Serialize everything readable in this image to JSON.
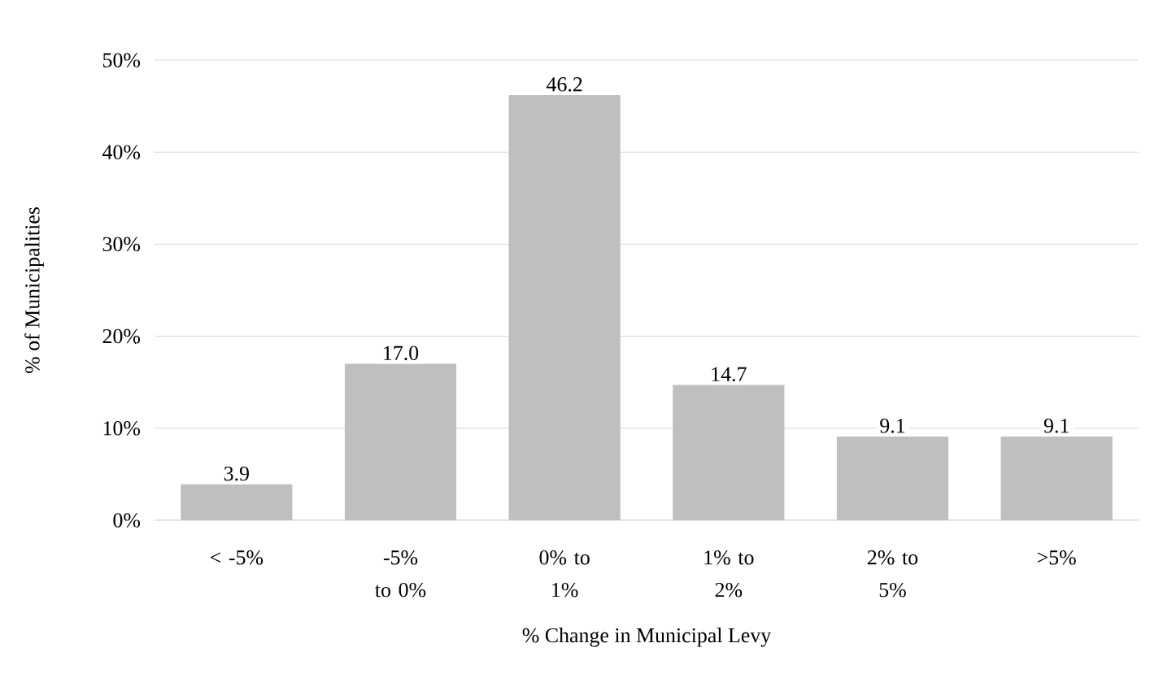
{
  "chart_data": {
    "type": "bar",
    "xlabel": "% Change in Municipal Levy",
    "ylabel": "% of Municipalities",
    "categories": [
      "< -5%",
      "-5% to 0%",
      "0% to 1%",
      "1% to 2%",
      "2% to 5%",
      ">5%"
    ],
    "values": [
      3.9,
      17.0,
      46.2,
      14.7,
      9.1,
      9.1
    ],
    "value_labels": [
      "3.9",
      "17.0",
      "46.2",
      "14.7",
      "9.1",
      "9.1"
    ],
    "color": "#bfbfbf",
    "ylim": [
      0,
      50
    ],
    "yticks": [
      {
        "value": 0,
        "label": "0%"
      },
      {
        "value": 10,
        "label": "10%"
      },
      {
        "value": 20,
        "label": "20%"
      },
      {
        "value": 30,
        "label": "30%"
      },
      {
        "value": 40,
        "label": "40%"
      },
      {
        "value": 50,
        "label": "50%"
      }
    ],
    "grid": "y"
  }
}
